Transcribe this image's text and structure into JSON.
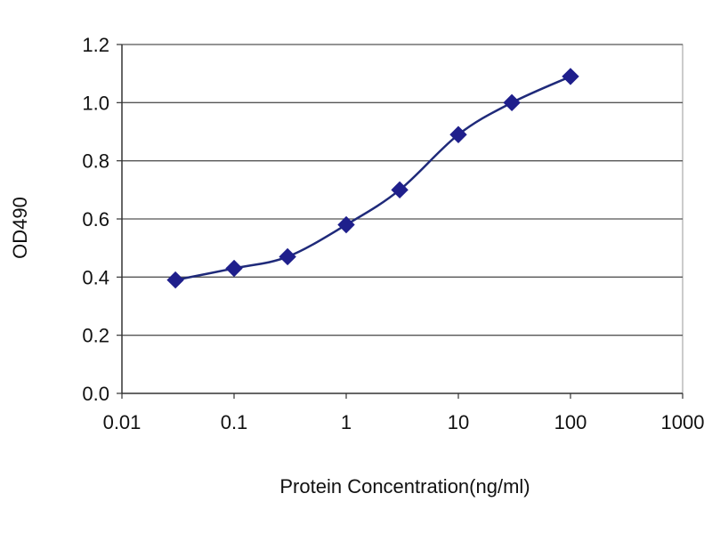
{
  "chart_data": {
    "type": "line",
    "title": "",
    "xlabel": "Protein Concentration(ng/ml)",
    "ylabel": "OD490",
    "x_scale": "log",
    "xlim": [
      0.01,
      1000
    ],
    "ylim": [
      0.0,
      1.2
    ],
    "x_ticks": [
      "0.01",
      "0.1",
      "1",
      "10",
      "100",
      "1000"
    ],
    "y_ticks": [
      "0.0",
      "0.2",
      "0.4",
      "0.6",
      "0.8",
      "1.0",
      "1.2"
    ],
    "grid": "horizontal",
    "legend": "none",
    "series": [
      {
        "x": [
          0.03,
          0.1,
          0.3,
          1,
          3,
          10,
          30,
          100
        ],
        "y": [
          0.39,
          0.43,
          0.47,
          0.58,
          0.7,
          0.89,
          1.0,
          1.09
        ]
      }
    ],
    "colors": {
      "line": "#1f2a7a",
      "marker": "#1f1f8c",
      "grid": "#555555",
      "axis": "#333333"
    }
  }
}
